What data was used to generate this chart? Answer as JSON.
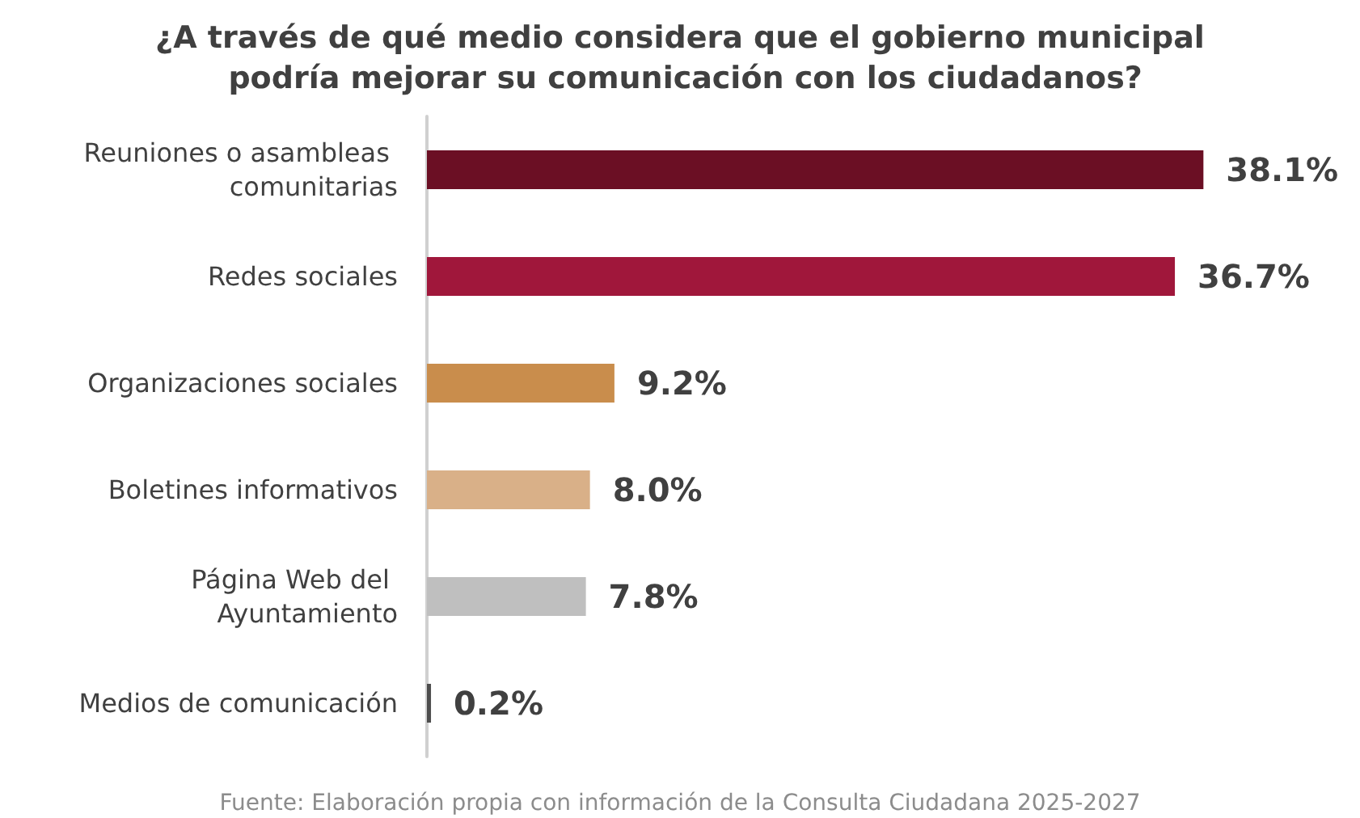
{
  "chart_data": {
    "type": "bar",
    "orientation": "horizontal",
    "title": "¿A través de qué medio considera que el gobierno municipal podría mejorar su comunicación con los ciudadanos?",
    "categories": [
      "Reuniones o asambleas comunitarias",
      "Redes sociales",
      "Organizaciones sociales",
      "Boletines informativos",
      "Página Web del Ayuntamiento",
      "Medios de comunicación"
    ],
    "values": [
      38.1,
      36.7,
      9.2,
      8.0,
      7.8,
      0.2
    ],
    "colors": [
      "#6b0f24",
      "#a0173b",
      "#c98d4c",
      "#d9b088",
      "#bfbfbf",
      "#4d4d4d"
    ],
    "value_labels": [
      "38.1%",
      "36.7%",
      "9.2%",
      "8.0%",
      "7.8%",
      "0.2%"
    ],
    "annotations": [
      "Fuente: Elaboración propia con información de la Consulta Ciudadana 2025-2027"
    ]
  }
}
